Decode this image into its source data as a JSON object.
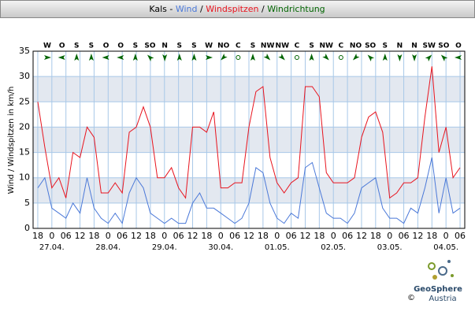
{
  "chart_data": {
    "type": "line",
    "title_place": "Kals -",
    "title_separator": "/",
    "direction_title": "Windrichtung",
    "direction_color": "#006400",
    "y_label": "Wind / Windspitzen in km/h",
    "directions": [
      "W",
      "O",
      "S",
      "S",
      "O",
      "O",
      "S",
      "SO",
      "N",
      "S",
      "S",
      "W",
      "NO",
      "C",
      "S",
      "NW",
      "NW",
      "C",
      "S",
      "NW",
      "C",
      "NO",
      "SO",
      "S",
      "N",
      "N",
      "SW",
      "SO",
      "O"
    ],
    "x": [
      0,
      3,
      6,
      9,
      12,
      15,
      18,
      21,
      24,
      27,
      30,
      33,
      36,
      39,
      42,
      45,
      48,
      51,
      54,
      57,
      60,
      63,
      66,
      69,
      72,
      75,
      78,
      81,
      84,
      87,
      90,
      93,
      96,
      99,
      102,
      105,
      108,
      111,
      114,
      117,
      120,
      123,
      126,
      129,
      132,
      135,
      138,
      141,
      144,
      147,
      150,
      153,
      156,
      159,
      162,
      165,
      168,
      171,
      174,
      177,
      180
    ],
    "series": [
      {
        "name": "Wind",
        "color": "#4a78d8",
        "values": [
          8,
          10,
          4,
          3,
          2,
          5,
          3,
          10,
          4,
          2,
          1,
          3,
          1,
          7,
          10,
          8,
          3,
          2,
          1,
          2,
          1,
          1,
          5,
          7,
          4,
          4,
          3,
          2,
          1,
          2,
          5,
          12,
          11,
          5,
          2,
          1,
          3,
          2,
          12,
          13,
          8,
          3,
          2,
          2,
          1,
          3,
          8,
          9,
          10,
          4,
          2,
          2,
          1,
          4,
          3,
          8,
          14,
          3,
          10,
          3,
          4
        ]
      },
      {
        "name": "Windspitzen",
        "color": "#e8141e",
        "values": [
          25,
          16,
          8,
          10,
          6,
          15,
          14,
          20,
          18,
          7,
          7,
          9,
          7,
          19,
          20,
          24,
          20,
          10,
          10,
          12,
          8,
          6,
          20,
          20,
          19,
          23,
          8,
          8,
          9,
          9,
          20,
          27,
          28,
          14,
          9,
          7,
          9,
          10,
          28,
          28,
          26,
          11,
          9,
          9,
          9,
          10,
          18,
          22,
          23,
          19,
          6,
          7,
          9,
          9,
          10,
          22,
          32,
          15,
          20,
          10,
          12
        ]
      }
    ],
    "xlim": [
      -2,
      182
    ],
    "xticks": [
      {
        "value": 0,
        "label": "18"
      },
      {
        "value": 6,
        "label": "0"
      },
      {
        "value": 12,
        "label": "06"
      },
      {
        "value": 18,
        "label": "12"
      },
      {
        "value": 24,
        "label": "18"
      },
      {
        "value": 30,
        "label": "0"
      },
      {
        "value": 36,
        "label": "06"
      },
      {
        "value": 42,
        "label": "12"
      },
      {
        "value": 48,
        "label": "18"
      },
      {
        "value": 54,
        "label": "0"
      },
      {
        "value": 60,
        "label": "06"
      },
      {
        "value": 66,
        "label": "12"
      },
      {
        "value": 72,
        "label": "18"
      },
      {
        "value": 78,
        "label": "0"
      },
      {
        "value": 84,
        "label": "06"
      },
      {
        "value": 90,
        "label": "12"
      },
      {
        "value": 96,
        "label": "18"
      },
      {
        "value": 102,
        "label": "0"
      },
      {
        "value": 108,
        "label": "06"
      },
      {
        "value": 114,
        "label": "12"
      },
      {
        "value": 120,
        "label": "18"
      },
      {
        "value": 126,
        "label": "0"
      },
      {
        "value": 132,
        "label": "06"
      },
      {
        "value": 138,
        "label": "12"
      },
      {
        "value": 144,
        "label": "18"
      },
      {
        "value": 150,
        "label": "0"
      },
      {
        "value": 156,
        "label": "06"
      },
      {
        "value": 162,
        "label": "12"
      },
      {
        "value": 168,
        "label": "18"
      },
      {
        "value": 174,
        "label": "0"
      },
      {
        "value": 180,
        "label": "06"
      }
    ],
    "date_ticks": [
      {
        "value": 6,
        "label": "27.04."
      },
      {
        "value": 30,
        "label": "28.04."
      },
      {
        "value": 54,
        "label": "29.04."
      },
      {
        "value": 78,
        "label": "30.04."
      },
      {
        "value": 102,
        "label": "01.05."
      },
      {
        "value": 126,
        "label": "02.05."
      },
      {
        "value": 150,
        "label": "03.05."
      },
      {
        "value": 174,
        "label": "04.05."
      }
    ],
    "ylim": [
      0,
      35
    ],
    "yticks": [
      0,
      5,
      10,
      15,
      20,
      25,
      30,
      35
    ],
    "grid": true
  },
  "footer": {
    "logo_name": "GeoSphere",
    "logo_country": "Austria",
    "copyright": "©"
  }
}
